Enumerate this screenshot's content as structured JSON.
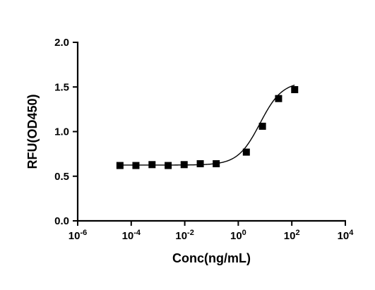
{
  "chart_data": {
    "type": "scatter",
    "title": "",
    "xlabel": "Conc(ng/mL)",
    "ylabel": "RFU(OD450)",
    "x_scale": "log10",
    "xlim": [
      1e-06,
      10000
    ],
    "ylim": [
      0,
      2.0
    ],
    "x_ticks": [
      {
        "base": "10",
        "exp": "-6",
        "value": 1e-06
      },
      {
        "base": "10",
        "exp": "-4",
        "value": 0.0001
      },
      {
        "base": "10",
        "exp": "-2",
        "value": 0.01
      },
      {
        "base": "10",
        "exp": "0",
        "value": 1
      },
      {
        "base": "10",
        "exp": "2",
        "value": 100
      },
      {
        "base": "10",
        "exp": "4",
        "value": 10000
      }
    ],
    "y_ticks": [
      {
        "label": "0.0",
        "value": 0.0
      },
      {
        "label": "0.5",
        "value": 0.5
      },
      {
        "label": "1.0",
        "value": 1.0
      },
      {
        "label": "1.5",
        "value": 1.5
      },
      {
        "label": "2.0",
        "value": 2.0
      }
    ],
    "grid": false,
    "series": [
      {
        "marker": "square",
        "color": "#000000",
        "points": [
          {
            "x": 3.8e-05,
            "y": 0.62
          },
          {
            "x": 0.00015,
            "y": 0.62
          },
          {
            "x": 0.0006,
            "y": 0.63
          },
          {
            "x": 0.0024,
            "y": 0.62
          },
          {
            "x": 0.0095,
            "y": 0.63
          },
          {
            "x": 0.038,
            "y": 0.64
          },
          {
            "x": 0.15,
            "y": 0.64
          },
          {
            "x": 2.0,
            "y": 0.77
          },
          {
            "x": 8.0,
            "y": 1.06
          },
          {
            "x": 32,
            "y": 1.37
          },
          {
            "x": 128,
            "y": 1.47
          }
        ],
        "fit_curve": {
          "bottom": 0.625,
          "top": 1.56,
          "ec50": 6.5,
          "hill": 1.05
        }
      }
    ]
  }
}
